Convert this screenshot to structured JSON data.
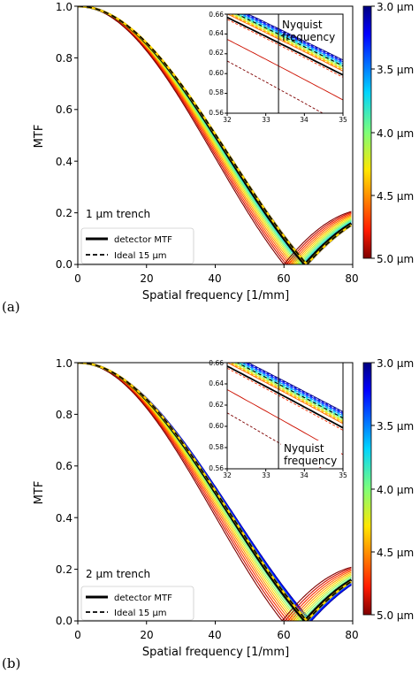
{
  "chart_data": [
    {
      "type": "line",
      "panel_label": "(a)",
      "xlabel": "Spatial frequency [1/mm]",
      "ylabel": "MTF",
      "xlim": [
        0,
        80
      ],
      "ylim": [
        0,
        1.0
      ],
      "xticks": [
        "0",
        "20",
        "40",
        "60",
        "80"
      ],
      "yticks": [
        "0.0",
        "0.2",
        "0.4",
        "0.6",
        "0.8",
        "1.0"
      ],
      "annotation": "1 μm trench",
      "legend": {
        "placement": "lower-left",
        "entries": [
          {
            "label": "detector MTF",
            "style": "solid"
          },
          {
            "label": "Ideal 15 μm",
            "style": "dashed"
          }
        ]
      },
      "inset": {
        "xlim": [
          32,
          35
        ],
        "ylim": [
          0.56,
          0.66
        ],
        "xticks": [
          "32",
          "33",
          "34",
          "35"
        ],
        "yticks": [
          "0.56",
          "0.58",
          "0.60",
          "0.62",
          "0.64",
          "0.66"
        ],
        "nyquist_x": 33.33,
        "nyquist_label": [
          "Nyquist",
          "frequency"
        ],
        "nyquist_label_position": "top"
      },
      "colorbar": {
        "ticks": [
          "3.0 μm",
          "3.5 μm",
          "4.0 μm",
          "4.5 μm",
          "5.0 μm"
        ],
        "range": [
          3.0,
          5.0
        ]
      },
      "model": {
        "detector_zero": 66,
        "ideal_zero": 66.7,
        "zeros_min": 60,
        "zeros_max": 67
      }
    },
    {
      "type": "line",
      "panel_label": "(b)",
      "xlabel": "Spatial frequency [1/mm]",
      "ylabel": "MTF",
      "xlim": [
        0,
        80
      ],
      "ylim": [
        0,
        1.0
      ],
      "xticks": [
        "0",
        "20",
        "40",
        "60",
        "80"
      ],
      "yticks": [
        "0.0",
        "0.2",
        "0.4",
        "0.6",
        "0.8",
        "1.0"
      ],
      "annotation": "2 μm trench",
      "legend": {
        "placement": "lower-left",
        "entries": [
          {
            "label": "detector MTF",
            "style": "solid"
          },
          {
            "label": "Ideal 15 μm",
            "style": "dashed"
          }
        ]
      },
      "inset": {
        "xlim": [
          32,
          35
        ],
        "ylim": [
          0.56,
          0.66
        ],
        "xticks": [
          "32",
          "33",
          "34",
          "35"
        ],
        "yticks": [
          "0.56",
          "0.58",
          "0.60",
          "0.62",
          "0.64",
          "0.66"
        ],
        "nyquist_x": 33.33,
        "nyquist_label": [
          "Nyquist",
          "frequency"
        ],
        "nyquist_label_position": "bottom"
      },
      "colorbar": {
        "ticks": [
          "3.0 μm",
          "3.5 μm",
          "4.0 μm",
          "4.5 μm",
          "5.0 μm"
        ],
        "range": [
          3.0,
          5.0
        ]
      },
      "model": {
        "detector_zero": 66,
        "ideal_zero": 66.7,
        "zeros_min": 59.5,
        "zeros_max": 68
      }
    }
  ]
}
